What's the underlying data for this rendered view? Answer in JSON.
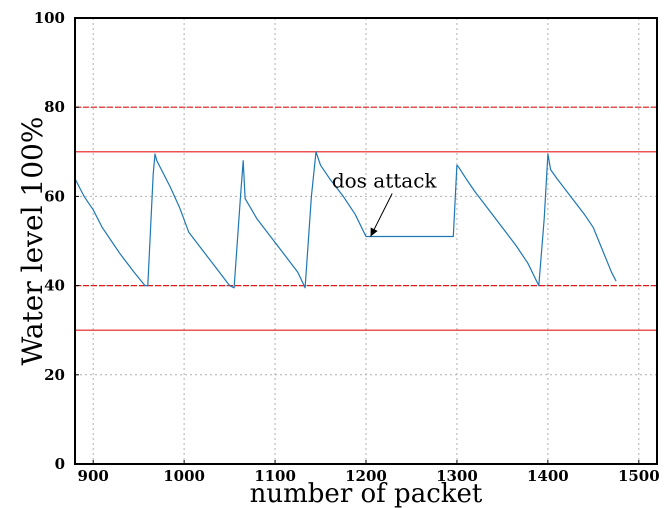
{
  "chart_data": {
    "type": "line",
    "title": "",
    "xlabel": "number of packet",
    "ylabel": "Water level 100%",
    "xlim": [
      880,
      1520
    ],
    "ylim": [
      0,
      100
    ],
    "x_ticks": [
      900,
      1000,
      1100,
      1200,
      1300,
      1400,
      1500
    ],
    "y_ticks": [
      0,
      20,
      40,
      60,
      80,
      100
    ],
    "grid": true,
    "series": [
      {
        "color": "#1f77b4",
        "points": [
          [
            880,
            64
          ],
          [
            885,
            62
          ],
          [
            890,
            60
          ],
          [
            900,
            57
          ],
          [
            910,
            53
          ],
          [
            920,
            50
          ],
          [
            930,
            47
          ],
          [
            945,
            43
          ],
          [
            957,
            40
          ],
          [
            960,
            40
          ],
          [
            966,
            65
          ],
          [
            968,
            69.5
          ],
          [
            970,
            68
          ],
          [
            975,
            66
          ],
          [
            985,
            62
          ],
          [
            995,
            57.5
          ],
          [
            1005,
            52
          ],
          [
            1020,
            48
          ],
          [
            1035,
            44
          ],
          [
            1050,
            40
          ],
          [
            1055,
            39.5
          ],
          [
            1062,
            60
          ],
          [
            1065,
            68
          ],
          [
            1067,
            59.5
          ],
          [
            1080,
            55
          ],
          [
            1095,
            51
          ],
          [
            1110,
            47
          ],
          [
            1125,
            43
          ],
          [
            1133,
            39.5
          ],
          [
            1140,
            60
          ],
          [
            1145,
            70
          ],
          [
            1150,
            67
          ],
          [
            1160,
            64
          ],
          [
            1175,
            60
          ],
          [
            1188,
            56
          ],
          [
            1200,
            51
          ],
          [
            1250,
            51
          ],
          [
            1296,
            51
          ],
          [
            1300,
            67
          ],
          [
            1302,
            66.5
          ],
          [
            1310,
            64
          ],
          [
            1320,
            61
          ],
          [
            1335,
            57
          ],
          [
            1350,
            53
          ],
          [
            1365,
            49
          ],
          [
            1378,
            45
          ],
          [
            1390,
            40
          ],
          [
            1396,
            55
          ],
          [
            1400,
            69.5
          ],
          [
            1403,
            66
          ],
          [
            1410,
            64
          ],
          [
            1425,
            60
          ],
          [
            1440,
            56
          ],
          [
            1450,
            53
          ],
          [
            1460,
            48
          ],
          [
            1470,
            43
          ],
          [
            1475,
            41
          ]
        ]
      }
    ],
    "threshold_lines": [
      {
        "y": 80,
        "color": "#e31a1c",
        "style": "dashed"
      },
      {
        "y": 70,
        "color": "#e31a1c",
        "style": "solid"
      },
      {
        "y": 40,
        "color": "#e31a1c",
        "style": "dashed"
      },
      {
        "y": 30,
        "color": "#e31a1c",
        "style": "solid"
      }
    ],
    "annotations": [
      {
        "text": "dos attack",
        "text_at": [
          1220,
          62
        ],
        "arrow_to": [
          1205,
          51
        ]
      }
    ]
  }
}
